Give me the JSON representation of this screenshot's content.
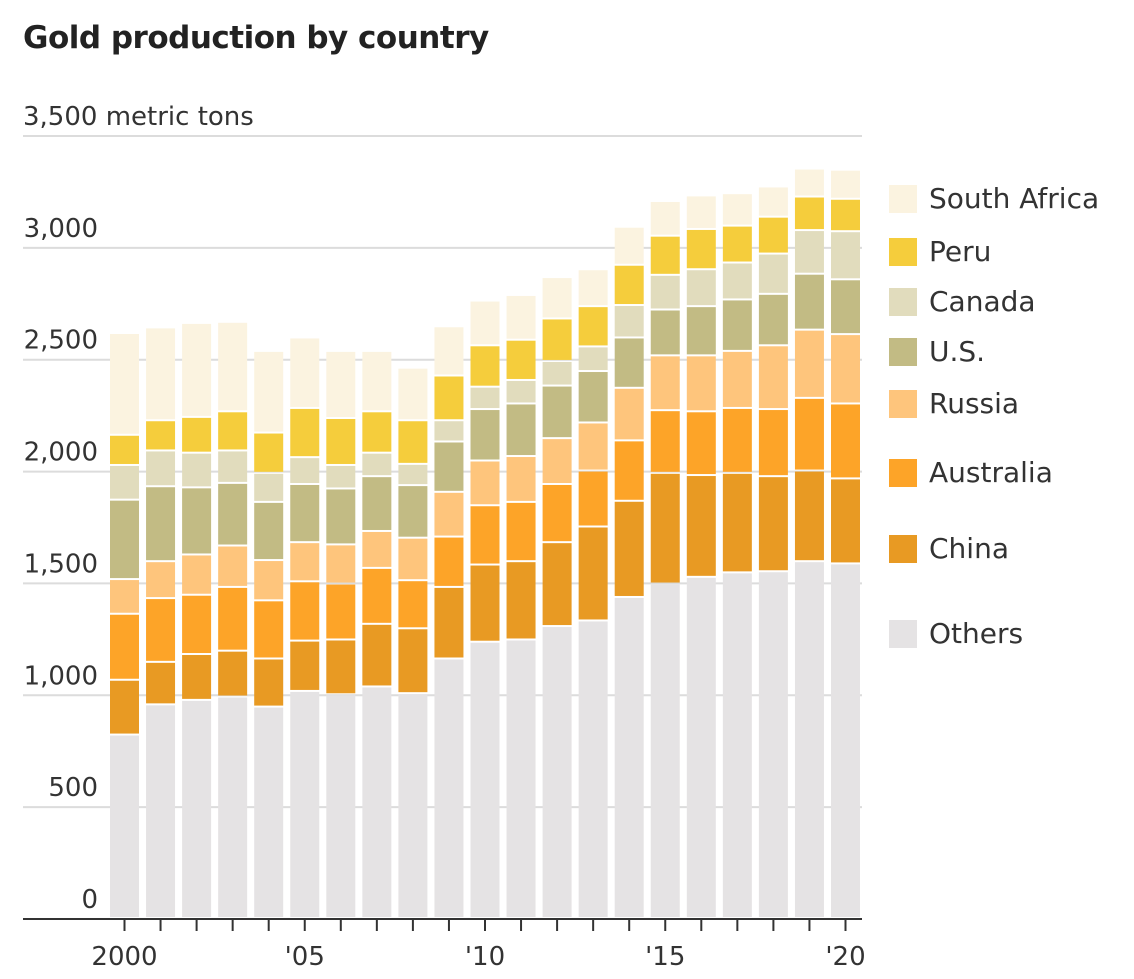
{
  "chart_data": {
    "type": "bar",
    "stacked": true,
    "title": "Gold production by country",
    "unit_label": "3,500 metric tons",
    "xlabel": "",
    "ylabel": "metric tons",
    "ylim": [
      0,
      3500
    ],
    "yticks": [
      0,
      500,
      1000,
      1500,
      2000,
      2500,
      3000,
      3500
    ],
    "ytick_labels": [
      "0",
      "500",
      "1,000",
      "1,500",
      "2,000",
      "2,500",
      "3,000",
      "3,500 metric tons"
    ],
    "grid": true,
    "legend_position": "right",
    "categories": [
      "2000",
      "2001",
      "2002",
      "2003",
      "2004",
      "2005",
      "2006",
      "2007",
      "2008",
      "2009",
      "2010",
      "2011",
      "2012",
      "2013",
      "2014",
      "2015",
      "2016",
      "2017",
      "2018",
      "2019",
      "2020"
    ],
    "xtick_labels": [
      {
        "index": 0,
        "label": "2000"
      },
      {
        "index": 5,
        "label": "'05"
      },
      {
        "index": 10,
        "label": "'10"
      },
      {
        "index": 15,
        "label": "'15"
      },
      {
        "index": 20,
        "label": "'20"
      }
    ],
    "series": [
      {
        "name": "Others",
        "color": "#e5e3e4",
        "values": [
          820,
          955,
          975,
          990,
          945,
          1015,
          1000,
          1035,
          1005,
          1160,
          1235,
          1245,
          1305,
          1330,
          1435,
          1495,
          1525,
          1545,
          1550,
          1595,
          1585
        ]
      },
      {
        "name": "China",
        "color": "#e89a23",
        "values": [
          245,
          190,
          205,
          205,
          215,
          225,
          245,
          280,
          290,
          320,
          345,
          350,
          375,
          420,
          430,
          495,
          455,
          445,
          425,
          405,
          380
        ]
      },
      {
        "name": "Australia",
        "color": "#fda428",
        "values": [
          295,
          285,
          265,
          285,
          260,
          265,
          250,
          250,
          215,
          225,
          265,
          265,
          260,
          250,
          270,
          280,
          285,
          290,
          300,
          325,
          335
        ]
      },
      {
        "name": "Russia",
        "color": "#fec57c",
        "values": [
          155,
          165,
          180,
          185,
          180,
          175,
          175,
          165,
          190,
          200,
          200,
          205,
          205,
          215,
          235,
          245,
          250,
          255,
          285,
          305,
          310
        ]
      },
      {
        "name": "U.S.",
        "color": "#c2bb84",
        "values": [
          355,
          335,
          300,
          280,
          260,
          260,
          250,
          245,
          235,
          225,
          230,
          235,
          235,
          230,
          225,
          205,
          220,
          230,
          230,
          250,
          245
        ]
      },
      {
        "name": "Canada",
        "color": "#e1dcbd",
        "values": [
          155,
          160,
          155,
          145,
          130,
          120,
          105,
          105,
          95,
          95,
          100,
          105,
          110,
          110,
          145,
          155,
          165,
          165,
          180,
          195,
          215
        ]
      },
      {
        "name": "Peru",
        "color": "#f5cd3c",
        "values": [
          135,
          135,
          160,
          175,
          180,
          220,
          210,
          185,
          195,
          200,
          185,
          180,
          190,
          180,
          180,
          175,
          180,
          165,
          165,
          150,
          145
        ]
      },
      {
        "name": "South Africa",
        "color": "#fbf3e0",
        "values": [
          455,
          415,
          420,
          400,
          365,
          315,
          300,
          270,
          235,
          220,
          200,
          200,
          185,
          165,
          170,
          155,
          150,
          145,
          135,
          125,
          130
        ]
      }
    ],
    "legend_order": [
      "South Africa",
      "Peru",
      "Canada",
      "U.S.",
      "Russia",
      "Australia",
      "China",
      "Others"
    ]
  }
}
